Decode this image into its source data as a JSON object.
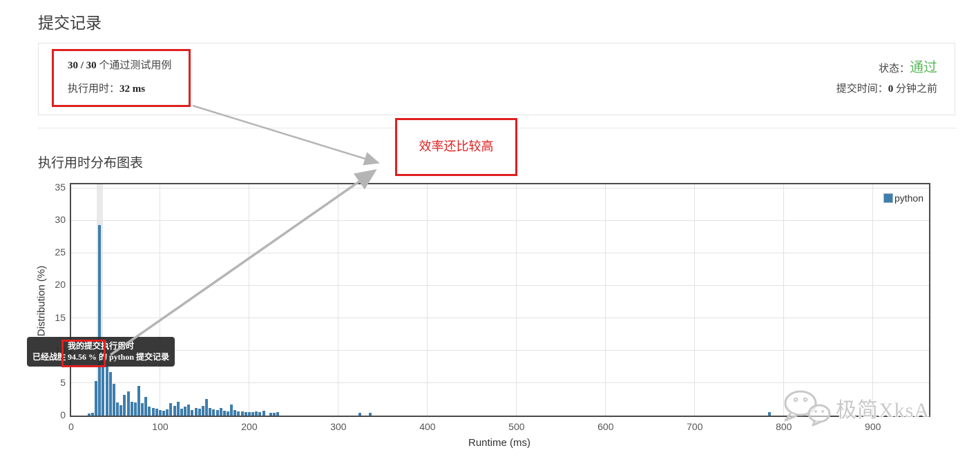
{
  "page_title": "提交记录",
  "result_card": {
    "tests_passed_bold": "30 / 30",
    "tests_passed_rest": " 个通过测试用例",
    "runtime_label": "执行用时：",
    "runtime_value": "32 ms",
    "status_label": "状态：",
    "status_value": "通过",
    "submitted_label": "提交时间：",
    "submitted_value_bold": "0",
    "submitted_value_rest": " 分钟之前"
  },
  "annotation": {
    "note": "效率还比较高"
  },
  "chart_section_title": "执行用时分布图表",
  "tooltip": {
    "line1": "我的提交执行用时",
    "line2_prefix": "已经战胜 ",
    "line2_highlight": "94.56 %",
    "line2_suffix": " 的 python 提交记录"
  },
  "watermark_text": "极简XksA",
  "colors": {
    "bar_blue": "#3e7ead",
    "status_green": "#5cb85c",
    "annotation_red": "#e01f1f",
    "tooltip_bg": "rgba(42,42,42,0.93)",
    "grid_gray": "#e2e2e2",
    "axis_dark": "#4a4a4a",
    "arrow_gray": "#b5b5b5",
    "watermark_gray": "#c9c9c9"
  },
  "chart_data": {
    "type": "bar",
    "title": "执行用时分布图表",
    "xlabel": "Runtime (ms)",
    "ylabel": "Distribution (%)",
    "xlim": [
      0,
      963
    ],
    "ylim": [
      0,
      35
    ],
    "x_ticks": [
      0,
      100,
      200,
      300,
      400,
      500,
      600,
      700,
      800,
      900
    ],
    "y_ticks": [
      0,
      5,
      10,
      15,
      20,
      25,
      30,
      35
    ],
    "grid": true,
    "legend": [
      {
        "label": "python",
        "color": "#3e7ead"
      }
    ],
    "legend_position": "top-right",
    "bin_width_ms": 4,
    "highlight_bin_ms": 32,
    "my_submission": {
      "runtime_ms": 32,
      "beats_percent": 94.56,
      "language": "python"
    },
    "bars": [
      [
        20,
        0.3
      ],
      [
        24,
        0.4
      ],
      [
        28,
        5.3
      ],
      [
        32,
        29.3
      ],
      [
        36,
        10.5
      ],
      [
        40,
        7.6
      ],
      [
        44,
        6.7
      ],
      [
        48,
        4.9
      ],
      [
        52,
        2.0
      ],
      [
        56,
        1.6
      ],
      [
        60,
        3.2
      ],
      [
        64,
        3.7
      ],
      [
        68,
        2.1
      ],
      [
        72,
        2.0
      ],
      [
        76,
        4.6
      ],
      [
        80,
        1.9
      ],
      [
        84,
        2.9
      ],
      [
        88,
        1.4
      ],
      [
        92,
        1.2
      ],
      [
        96,
        1.1
      ],
      [
        100,
        0.9
      ],
      [
        104,
        0.7
      ],
      [
        108,
        1.0
      ],
      [
        112,
        1.9
      ],
      [
        116,
        1.5
      ],
      [
        120,
        2.1
      ],
      [
        124,
        1.1
      ],
      [
        128,
        1.4
      ],
      [
        132,
        1.7
      ],
      [
        136,
        0.9
      ],
      [
        140,
        1.2
      ],
      [
        144,
        1.1
      ],
      [
        148,
        1.5
      ],
      [
        152,
        2.6
      ],
      [
        156,
        1.2
      ],
      [
        160,
        1.0
      ],
      [
        164,
        0.8
      ],
      [
        168,
        1.2
      ],
      [
        172,
        0.7
      ],
      [
        176,
        0.6
      ],
      [
        180,
        1.7
      ],
      [
        184,
        0.9
      ],
      [
        188,
        0.6
      ],
      [
        192,
        0.6
      ],
      [
        196,
        0.5
      ],
      [
        200,
        0.5
      ],
      [
        204,
        0.5
      ],
      [
        208,
        0.6
      ],
      [
        212,
        0.5
      ],
      [
        216,
        0.7
      ],
      [
        224,
        0.4
      ],
      [
        228,
        0.4
      ],
      [
        232,
        0.5
      ],
      [
        324,
        0.45
      ],
      [
        336,
        0.45
      ],
      [
        784,
        0.5
      ]
    ]
  }
}
